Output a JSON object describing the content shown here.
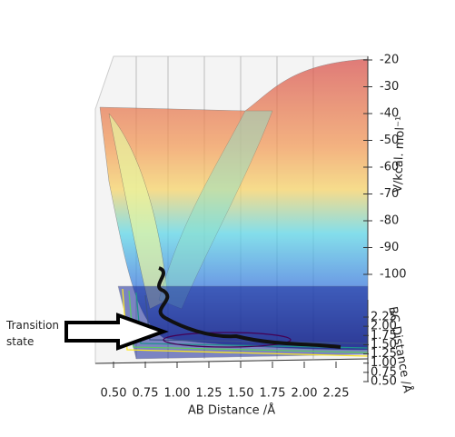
{
  "chart_data": {
    "type": "surface3d",
    "xlabel": "AB Distance /Å",
    "ylabel": "BC Distance /Å",
    "zlabel": "V/kcal. mol⁻¹",
    "xlim": [
      0.5,
      2.25
    ],
    "xticks": [
      {
        "value": 0.5,
        "label": "0.50"
      },
      {
        "value": 0.75,
        "label": "0.75"
      },
      {
        "value": 1,
        "label": "1.00"
      },
      {
        "value": 1.25,
        "label": "1.25"
      },
      {
        "value": 1.5,
        "label": "1.50"
      },
      {
        "value": 1.75,
        "label": "1.75"
      },
      {
        "value": 2,
        "label": "2.00"
      },
      {
        "value": 2.25,
        "label": "2.25"
      }
    ],
    "ylim": [
      0.5,
      2.25
    ],
    "yticks": [
      {
        "value": 0.5,
        "label": "0.50"
      },
      {
        "value": 0.75,
        "label": "0.75"
      },
      {
        "value": 1,
        "label": "1.00"
      },
      {
        "value": 1.25,
        "label": "1.25"
      },
      {
        "value": 1.5,
        "label": "1.50"
      },
      {
        "value": 1.75,
        "label": "1.75"
      },
      {
        "value": 2,
        "label": "2.00"
      },
      {
        "value": 2.25,
        "label": "2.25"
      }
    ],
    "zlim": [
      -100,
      -20
    ],
    "zticks": [
      -20,
      -30,
      -40,
      -50,
      -60,
      -70,
      -80,
      -90,
      -100
    ],
    "annotation": "Transition state"
  }
}
